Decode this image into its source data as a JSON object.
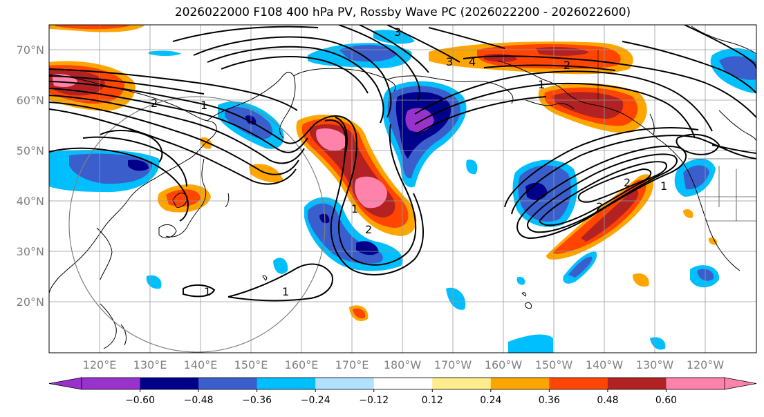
{
  "title": "2026022000 F108 400 hPa PV, Rossby Wave PC (2026022200 - 2026022600)",
  "map": {
    "lat_labels": [
      "70°N",
      "60°N",
      "50°N",
      "40°N",
      "30°N",
      "20°N"
    ],
    "lon_labels": [
      "120°E",
      "130°E",
      "140°E",
      "150°E",
      "160°E",
      "170°E",
      "180°W",
      "170°W",
      "160°W",
      "150°W",
      "140°W",
      "130°W",
      "120°W"
    ],
    "contour_labels": [
      "1",
      "2",
      "3",
      "4",
      "1",
      "2",
      "1",
      "2",
      "3",
      "1",
      "2",
      "1",
      "2",
      "1"
    ]
  },
  "colorbar": {
    "colors": [
      "#9932cc",
      "#00008b",
      "#3a5fcd",
      "#00bfff",
      "#b0e2ff",
      "#ffffff",
      "#ffec8b",
      "#ffa500",
      "#ff4500",
      "#b22222",
      "#ff82ab"
    ],
    "tick_labels": [
      "−0.60",
      "−0.48",
      "−0.36",
      "−0.24",
      "−0.12",
      "0.12",
      "0.24",
      "0.36",
      "0.48",
      "0.60"
    ]
  }
}
